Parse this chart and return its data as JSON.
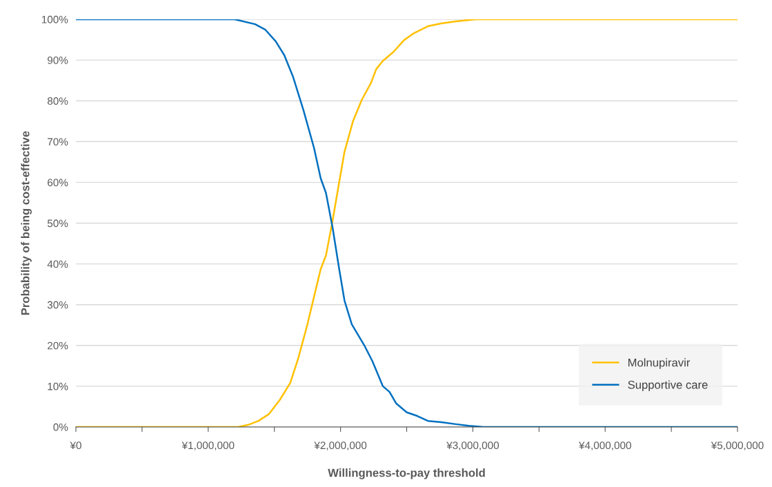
{
  "chart_data": {
    "type": "line",
    "xlabel": "Willingness-to-pay threshold",
    "ylabel": "Probability of being cost-effective",
    "xlim": [
      0,
      5000000
    ],
    "xticks": [
      {
        "value": 0,
        "label": "¥0"
      },
      {
        "value": 500000,
        "label": null
      },
      {
        "value": 1000000,
        "label": "¥1,000,000"
      },
      {
        "value": 1500000,
        "label": null
      },
      {
        "value": 2000000,
        "label": "¥2,000,000"
      },
      {
        "value": 2500000,
        "label": null
      },
      {
        "value": 3000000,
        "label": "¥3,000,000"
      },
      {
        "value": 3500000,
        "label": null
      },
      {
        "value": 4000000,
        "label": "¥4,000,000"
      },
      {
        "value": 4500000,
        "label": null
      },
      {
        "value": 5000000,
        "label": "¥5,000,000"
      }
    ],
    "ylim": [
      0,
      100
    ],
    "yticks": [
      {
        "value": 0,
        "label": "0%"
      },
      {
        "value": 10,
        "label": "10%"
      },
      {
        "value": 20,
        "label": "20%"
      },
      {
        "value": 30,
        "label": "30%"
      },
      {
        "value": 40,
        "label": "40%"
      },
      {
        "value": 50,
        "label": "50%"
      },
      {
        "value": 60,
        "label": "60%"
      },
      {
        "value": 70,
        "label": "70%"
      },
      {
        "value": 80,
        "label": "80%"
      },
      {
        "value": 90,
        "label": "90%"
      },
      {
        "value": 100,
        "label": "100%"
      }
    ],
    "grid": "y",
    "legend": "bottom right",
    "marker": "none",
    "line_style": "solid",
    "series": [
      {
        "name": "Molnupiravir",
        "color": "#ffc000",
        "x": [
          0,
          1225000,
          1300000,
          1380000,
          1460000,
          1540000,
          1620000,
          1680000,
          1750000,
          1800000,
          1850000,
          1890000,
          1940000,
          1980000,
          2030000,
          2095000,
          2160000,
          2230000,
          2270000,
          2320000,
          2400000,
          2480000,
          2555000,
          2660000,
          2760000,
          2870000,
          3020000,
          5000000
        ],
        "values": [
          0,
          0,
          0.5,
          1.5,
          3.2,
          6.6,
          10.8,
          16.8,
          25.2,
          32,
          38.7,
          42.1,
          50.6,
          58.2,
          67.5,
          75.1,
          80.2,
          84.4,
          87.8,
          89.8,
          92,
          94.9,
          96.6,
          98.3,
          99,
          99.5,
          100,
          100
        ]
      },
      {
        "name": "Supportive care",
        "color": "#0070c0",
        "x": [
          0,
          1200000,
          1355000,
          1430000,
          1510000,
          1575000,
          1640000,
          1720000,
          1800000,
          1850000,
          1890000,
          1940000,
          1990000,
          2030000,
          2085000,
          2180000,
          2240000,
          2320000,
          2370000,
          2420000,
          2500000,
          2580000,
          2660000,
          2760000,
          2870000,
          2970000,
          3080000,
          5000000
        ],
        "values": [
          100,
          100,
          98.8,
          97.5,
          94.6,
          91.2,
          86,
          77.7,
          68.4,
          61,
          57.4,
          48.9,
          38.7,
          31,
          25.2,
          20,
          16.2,
          10,
          8.6,
          5.8,
          3.6,
          2.7,
          1.5,
          1.2,
          0.7,
          0.3,
          0,
          0
        ]
      }
    ]
  }
}
